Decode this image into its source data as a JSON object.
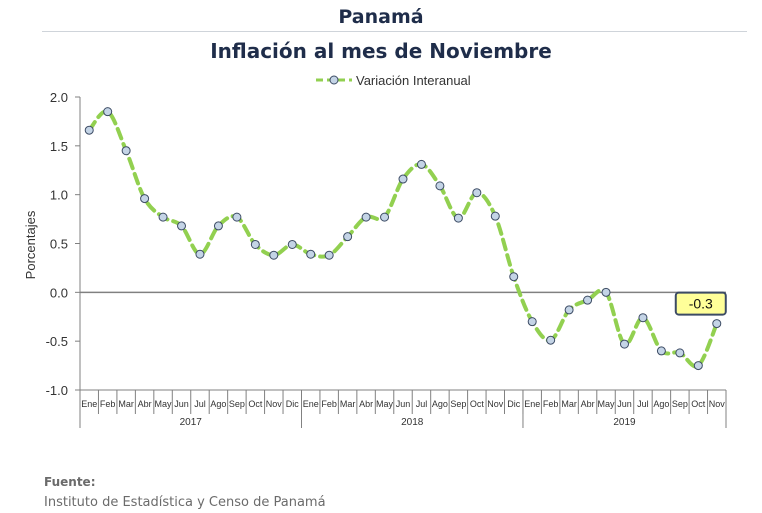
{
  "header": {
    "country": "Panamá",
    "title": "Inflación al mes de Noviembre"
  },
  "footer": {
    "source_label": "Fuente:",
    "source_text": "Instituto de Estadística y Censo de Panamá"
  },
  "chart_data": {
    "type": "line",
    "ylabel": "Porcentajes",
    "ylim": [
      -1.0,
      2.0
    ],
    "yticks": [
      "2.0",
      "1.5",
      "1.0",
      "0.5",
      "0.0",
      "-0.5",
      "-1.0"
    ],
    "grid": false,
    "legend_position": "top-center",
    "series_color": "#92d050",
    "marker_fill": "#c4d4e6",
    "months": [
      "Ene",
      "Feb",
      "Mar",
      "Abr",
      "May",
      "Jun",
      "Jul",
      "Ago",
      "Sep",
      "Oct",
      "Nov",
      "Dic",
      "Ene",
      "Feb",
      "Mar",
      "Abr",
      "May",
      "Jun",
      "Jul",
      "Ago",
      "Sep",
      "Oct",
      "Nov",
      "Dic",
      "Ene",
      "Feb",
      "Mar",
      "Abr",
      "May",
      "Jun",
      "Jul",
      "Ago",
      "Sep",
      "Oct",
      "Nov"
    ],
    "years": [
      {
        "label": "2017",
        "count": 12
      },
      {
        "label": "2018",
        "count": 12
      },
      {
        "label": "2019",
        "count": 11
      }
    ],
    "series": [
      {
        "name": "Variación Interanual",
        "values": [
          1.66,
          1.85,
          1.45,
          0.96,
          0.77,
          0.68,
          0.39,
          0.68,
          0.77,
          0.49,
          0.38,
          0.49,
          0.39,
          0.38,
          0.57,
          0.77,
          0.77,
          1.16,
          1.31,
          1.09,
          0.76,
          1.02,
          0.78,
          0.16,
          -0.3,
          -0.49,
          -0.18,
          -0.08,
          0.0,
          -0.53,
          -0.26,
          -0.6,
          -0.62,
          -0.75,
          -0.32
        ]
      }
    ],
    "callout": {
      "label": "-0.3",
      "value": -0.32,
      "index": 34
    }
  }
}
